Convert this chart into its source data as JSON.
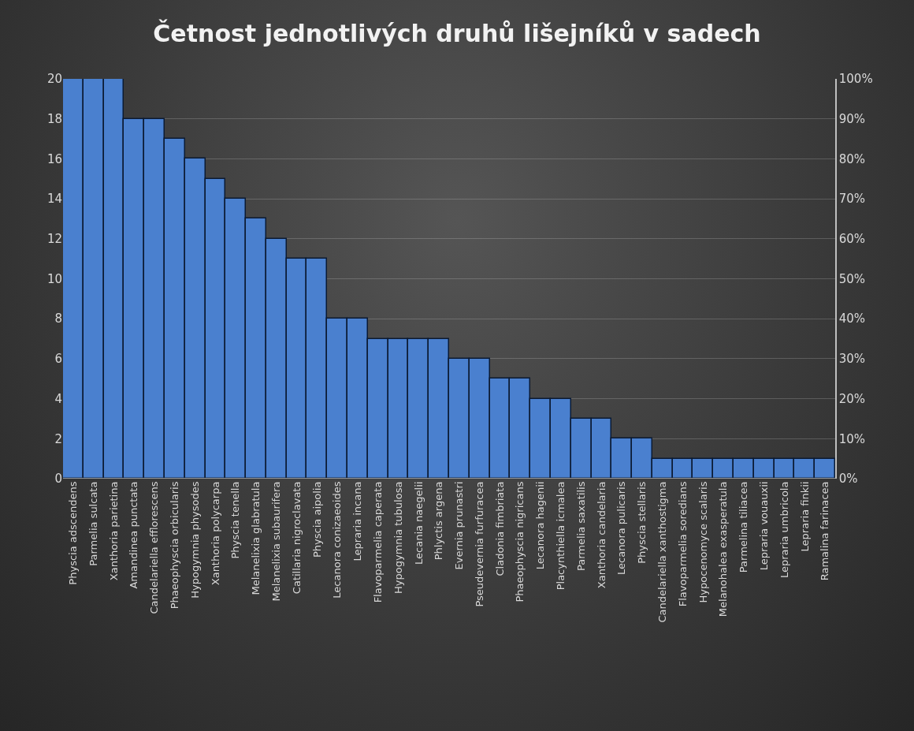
{
  "chart_data": {
    "type": "bar",
    "title": "Četnost jednotlivých druhů lišejníků v sadech",
    "categories": [
      "Physcia adscendens",
      "Parmelia sulcata",
      "Xanthoria parietina",
      "Amandinea punctata",
      "Candelariella efflorescens",
      "Phaeophyscia orbicularis",
      "Hypogymnia physodes",
      "Xanthoria polycarpa",
      "Physcia tenella",
      "Melanelixia glabratula",
      "Melanelixia subaurifera",
      "Catillaria nigroclavata",
      "Physcia aipolia",
      "Lecanora conizaeoides",
      "Lepraria incana",
      "Flavoparmelia caperata",
      "Hypogymnia tubulosa",
      "Lecania naegelii",
      "Phlyctis argena",
      "Evernia prunastri",
      "Pseudevernia furfuracea",
      "Cladonia fimbriata",
      "Phaeophyscia nigricans",
      "Lecanora hagenii",
      "Placynthiella icmalea",
      "Parmelia saxatilis",
      "Xanthoria candelaria",
      "Lecanora pulicaris",
      "Physcia stellaris",
      "Candelariella xanthostigma",
      "Flavoparmelia soredians",
      "Hypocenomyce scalaris",
      "Melanohalea exasperatula",
      "Parmelina tiliacea",
      "Lepraria vouauxii",
      "Lepraria umbricola",
      "Lepraria finkii",
      "Ramalina farinacea"
    ],
    "values": [
      20,
      20,
      20,
      18,
      18,
      17,
      16,
      15,
      14,
      13,
      12,
      11,
      11,
      8,
      8,
      7,
      7,
      7,
      7,
      6,
      6,
      5,
      5,
      4,
      4,
      3,
      3,
      2,
      2,
      1,
      1,
      1,
      1,
      1,
      1,
      1,
      1,
      1
    ],
    "color": "#4a80cf",
    "ylim": [
      0,
      20
    ],
    "yticks": [
      0,
      2,
      4,
      6,
      8,
      10,
      12,
      14,
      16,
      18,
      20
    ],
    "y2lim": [
      0,
      100
    ],
    "y2ticks": [
      {
        "value": 0,
        "label": "0%"
      },
      {
        "value": 10,
        "label": "10%"
      },
      {
        "value": 20,
        "label": "20%"
      },
      {
        "value": 30,
        "label": "30%"
      },
      {
        "value": 40,
        "label": "40%"
      },
      {
        "value": 50,
        "label": "50%"
      },
      {
        "value": 60,
        "label": "60%"
      },
      {
        "value": 70,
        "label": "70%"
      },
      {
        "value": 80,
        "label": "80%"
      },
      {
        "value": 90,
        "label": "90%"
      },
      {
        "value": 100,
        "label": "100%"
      }
    ],
    "grid": "y"
  }
}
